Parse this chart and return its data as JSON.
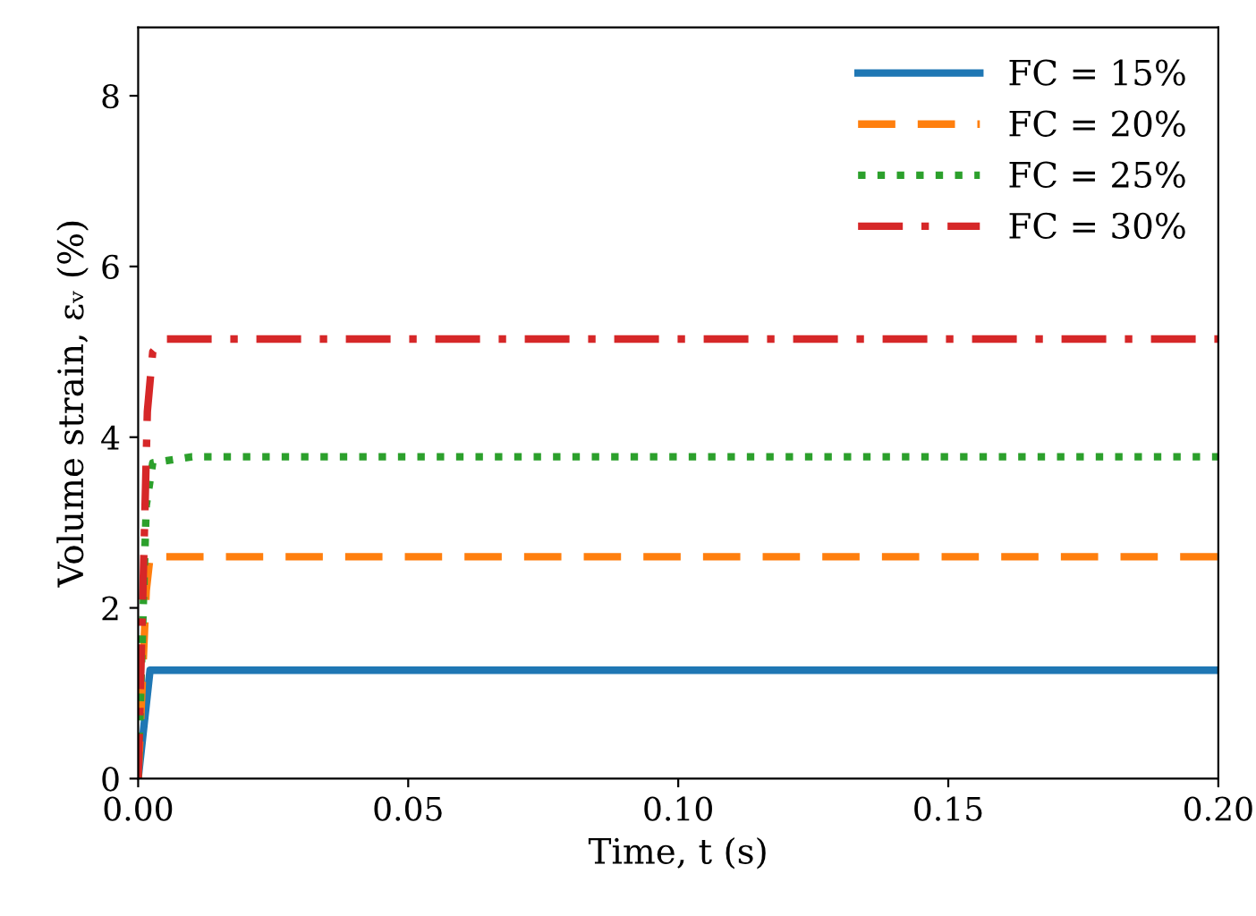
{
  "chart_data": {
    "type": "line",
    "xlabel": "Time, t (s)",
    "ylabel": "Volume strain, εᵥ (%)",
    "xlim": [
      0,
      0.2
    ],
    "ylim": [
      0,
      8.8
    ],
    "xticks": [
      {
        "value": 0,
        "label": "0.00"
      },
      {
        "value": 0.05,
        "label": "0.05"
      },
      {
        "value": 0.1,
        "label": "0.10"
      },
      {
        "value": 0.15,
        "label": "0.15"
      },
      {
        "value": 0.2,
        "label": "0.20"
      }
    ],
    "yticks": [
      0,
      2,
      4,
      6,
      8
    ],
    "grid": false,
    "legend": "top right",
    "series": [
      {
        "name": "FC = 15%",
        "color": "#1f77b4",
        "line_style": "solid",
        "x": [
          0,
          0.0022,
          0.01,
          0.2
        ],
        "values": [
          0,
          1.27,
          1.27,
          1.27
        ]
      },
      {
        "name": "FC = 20%",
        "color": "#ff7f0e",
        "line_style": "dashed",
        "x": [
          0,
          0.0015,
          0.0022,
          0.01,
          0.2
        ],
        "values": [
          0,
          2.2,
          2.6,
          2.6,
          2.6
        ]
      },
      {
        "name": "FC = 25%",
        "color": "#2ca02c",
        "line_style": "dotted",
        "x": [
          0,
          0.0015,
          0.0027,
          0.01,
          0.2
        ],
        "values": [
          0,
          3.2,
          3.7,
          3.77,
          3.77
        ]
      },
      {
        "name": "FC = 30%",
        "color": "#d62728",
        "line_style": "dashdot",
        "x": [
          0,
          0.0012,
          0.0017,
          0.0027,
          0.0047,
          0.01,
          0.2
        ],
        "values": [
          0,
          3.0,
          4.3,
          5.0,
          5.15,
          5.15,
          5.15
        ]
      }
    ]
  }
}
